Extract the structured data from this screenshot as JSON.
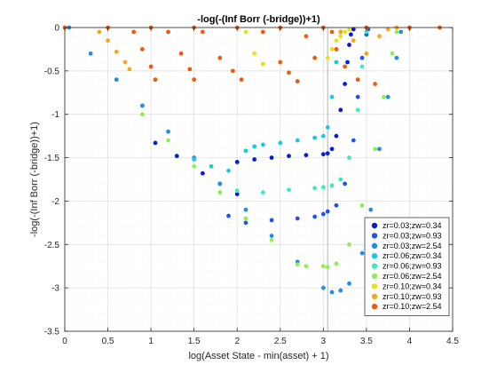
{
  "chart_data": {
    "type": "scatter",
    "title": "-log(-(Inf Borr (-bridge))+1)",
    "xlabel": "log(Asset State - min(asset) + 1)",
    "ylabel": "-log(-(Inf Borr (-bridge))+1)",
    "xlim": [
      0,
      4.5
    ],
    "ylim": [
      -3.5,
      0
    ],
    "xticks": [
      0,
      0.5,
      1,
      1.5,
      2,
      2.5,
      3,
      3.5,
      4,
      4.5
    ],
    "xtick_labels": [
      "0",
      "0.5",
      "1",
      "1.5",
      "2",
      "2.5",
      "3",
      "3.5",
      "4",
      "4.5"
    ],
    "yticks": [
      0,
      -0.5,
      -1,
      -1.5,
      -2,
      -2.5,
      -3,
      -3.5
    ],
    "ytick_labels": [
      "0",
      "-0.5",
      "-1",
      "-1.5",
      "-2",
      "-2.5",
      "-3",
      "-3.5"
    ],
    "grid": true,
    "minor_grid": true,
    "legend_position": "bottom-right",
    "vertical_reference_line": 3.05,
    "series": [
      {
        "name": "zr=0.03;zw=0.34",
        "color": "#0a1ad9",
        "x": [
          1.05,
          1.3,
          1.6,
          1.8,
          2.0,
          2.0,
          2.2,
          2.4,
          2.6,
          2.8,
          3.0,
          3.05,
          3.1,
          3.15,
          3.2,
          3.25,
          3.28,
          3.3,
          3.32,
          3.35
        ],
        "y": [
          -1.33,
          -1.48,
          -1.68,
          -1.8,
          -1.92,
          -1.55,
          -1.52,
          -1.5,
          -1.48,
          -1.47,
          -1.46,
          -1.45,
          -1.4,
          -1.25,
          -0.95,
          -0.65,
          -0.4,
          -0.2,
          -0.08,
          -0.02
        ]
      },
      {
        "name": "zr=0.03;zw=0.93",
        "color": "#1f55e8",
        "x": [
          1.9,
          2.1,
          2.4,
          2.7,
          2.9,
          3.0,
          3.05,
          3.15,
          3.25,
          3.35,
          3.4,
          3.45,
          3.5,
          3.52
        ],
        "y": [
          -2.17,
          -2.25,
          -2.22,
          -2.2,
          -2.18,
          -2.15,
          -2.12,
          -2.05,
          -1.8,
          -1.3,
          -0.8,
          -0.35,
          -0.08,
          -0.02
        ]
      },
      {
        "name": "zr=0.03;zw=2.54",
        "color": "#1e8ee8",
        "x": [
          0.05,
          0.3,
          0.6,
          0.9,
          1.2,
          1.5,
          1.8,
          2.1,
          2.4,
          2.7,
          3.0,
          3.1,
          3.2,
          3.3,
          3.45,
          3.55,
          3.65,
          3.75,
          3.85,
          3.9
        ],
        "y": [
          0,
          -0.3,
          -0.6,
          -0.9,
          -1.2,
          -1.5,
          -1.8,
          -2.1,
          -2.4,
          -2.7,
          -3.0,
          -3.05,
          -3.03,
          -2.95,
          -2.6,
          -2.1,
          -1.4,
          -0.8,
          -0.35,
          -0.05
        ]
      },
      {
        "name": "zr=0.06;zw=0.34",
        "color": "#19c8e6",
        "x": [
          1.5,
          1.7,
          1.9,
          2.1,
          2.2,
          2.3,
          2.5,
          2.7,
          2.9,
          3.0,
          3.05,
          3.1,
          3.15,
          3.2
        ],
        "y": [
          -1.52,
          -1.6,
          -1.65,
          -1.42,
          -1.37,
          -1.35,
          -1.33,
          -1.3,
          -1.27,
          -1.25,
          -1.15,
          -0.8,
          -0.4,
          -0.05
        ]
      },
      {
        "name": "zr=0.06;zw=0.93",
        "color": "#3be8c8",
        "x": [
          2.0,
          2.3,
          2.6,
          2.9,
          3.0,
          3.1,
          3.2,
          3.3,
          3.4,
          3.45,
          3.5
        ],
        "y": [
          -1.88,
          -1.9,
          -1.87,
          -1.85,
          -1.84,
          -1.82,
          -1.75,
          -1.5,
          -0.95,
          -0.45,
          -0.05
        ]
      },
      {
        "name": "zr=0.06;zw=2.54",
        "color": "#90ef58",
        "x": [
          0.9,
          1.2,
          1.5,
          1.8,
          2.1,
          2.4,
          2.7,
          2.8,
          3.0,
          3.05,
          3.15,
          3.3,
          3.45,
          3.6,
          3.7,
          3.8,
          3.85
        ],
        "y": [
          -1.0,
          -1.3,
          -1.6,
          -1.9,
          -2.2,
          -2.45,
          -2.73,
          -2.75,
          -2.75,
          -2.76,
          -2.72,
          -2.5,
          -2.05,
          -1.4,
          -0.8,
          -0.3,
          -0.05
        ]
      },
      {
        "name": "zr=0.10;zw=0.34",
        "color": "#e3e318",
        "x": [
          2.1,
          2.2,
          2.3,
          3.05,
          3.1,
          3.15,
          3.2,
          3.25,
          3.3
        ],
        "y": [
          -0.05,
          -0.3,
          -0.42,
          -0.35,
          -0.25,
          -0.15,
          -0.1,
          -0.05,
          -0.02
        ]
      },
      {
        "name": "zr=0.10;zw=0.93",
        "color": "#f5a81a",
        "x": [
          0.4,
          0.5,
          0.6,
          0.7,
          0.75,
          3.2,
          3.35,
          3.5,
          3.65,
          3.75,
          3.85
        ],
        "y": [
          -0.05,
          -0.15,
          -0.28,
          -0.4,
          -0.48,
          -0.05,
          -0.15,
          -0.3,
          -0.1,
          -0.02,
          0
        ]
      },
      {
        "name": "zr=0.10;zw=2.54",
        "color": "#f05a0c",
        "x": [
          0,
          0.5,
          1.0,
          1.5,
          2.0,
          2.5,
          3.0,
          3.5,
          4.0,
          4.35,
          0.8,
          0.9,
          1.0,
          1.05,
          1.2,
          1.35,
          1.45,
          1.5,
          1.6,
          1.8,
          1.95,
          2.05,
          2.3,
          2.5,
          2.6,
          2.7,
          2.8,
          2.9,
          3.1,
          3.15,
          3.25,
          3.4,
          3.6
        ],
        "y": [
          0,
          0,
          0,
          0,
          0,
          0,
          0,
          0,
          0,
          0,
          -0.05,
          -0.25,
          -0.45,
          -0.6,
          -0.05,
          -0.3,
          -0.48,
          -0.6,
          -0.05,
          -0.35,
          -0.5,
          -0.6,
          -0.05,
          -0.4,
          -0.52,
          -0.62,
          -0.1,
          -0.35,
          -0.05,
          -0.25,
          -0.45,
          -0.6,
          -0.65
        ]
      }
    ]
  }
}
